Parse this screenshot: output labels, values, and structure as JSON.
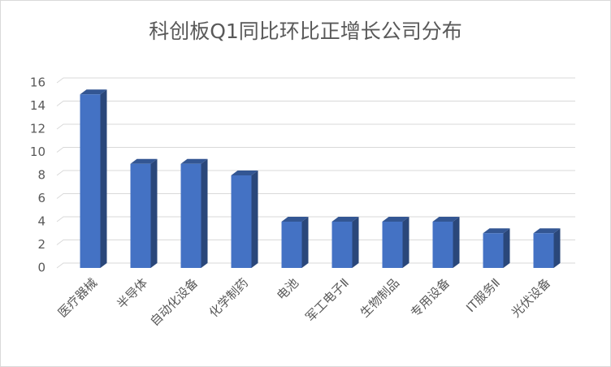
{
  "chart_data": {
    "type": "bar",
    "title": "科创板Q1同比环比正增长公司分布",
    "categories": [
      "医疗器械",
      "半导体",
      "自动化设备",
      "化学制药",
      "电池",
      "军工电子Ⅱ",
      "生物制品",
      "专用设备",
      "IT服务Ⅱ",
      "光伏设备"
    ],
    "values": [
      15,
      9,
      9,
      8,
      4,
      4,
      4,
      4,
      3,
      3
    ],
    "color": "#4472c4",
    "ylim": [
      0,
      16
    ],
    "yticks": [
      0,
      2,
      4,
      6,
      8,
      10,
      12,
      14,
      16
    ],
    "grid": true
  }
}
